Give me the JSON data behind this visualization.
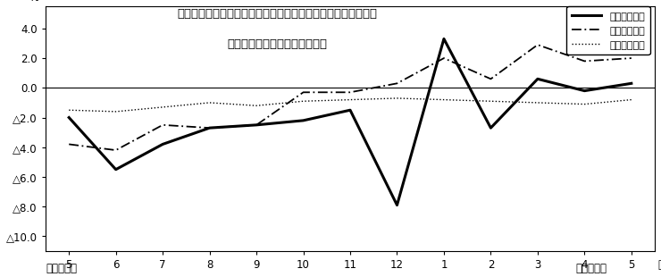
{
  "title_line1": "第４図　賃金、労働時間、常用雇用指数　対前年同月比の推移",
  "title_line2": "（規模５人以上　調査産業計）",
  "xlabel_months": [
    "5",
    "6",
    "7",
    "8",
    "9",
    "10",
    "11",
    "12",
    "1",
    "2",
    "3",
    "4",
    "5"
  ],
  "xlabel_bottom_left": "平成２１年",
  "xlabel_bottom_right": "平成２２年",
  "month_label": "月",
  "ylabel": "%",
  "ylim": [
    -11.0,
    5.5
  ],
  "yticks": [
    4.0,
    2.0,
    0.0,
    -2.0,
    -4.0,
    -6.0,
    -8.0,
    -10.0
  ],
  "ytick_labels": [
    "4.0",
    "2.0",
    "0.0",
    "△2.0",
    "△4.0",
    "△6.0",
    "△8.0",
    "△10.0"
  ],
  "series_cash": [
    -2.0,
    -5.5,
    -3.8,
    -2.7,
    -2.5,
    -2.2,
    -1.5,
    -7.9,
    3.3,
    -2.7,
    0.6,
    -0.2,
    0.3
  ],
  "series_hours": [
    -3.8,
    -4.2,
    -2.5,
    -2.7,
    -2.5,
    -0.3,
    -0.3,
    0.3,
    2.0,
    0.6,
    2.9,
    1.8,
    2.0
  ],
  "series_employment": [
    -1.5,
    -1.6,
    -1.3,
    -1.0,
    -1.2,
    -0.9,
    -0.8,
    -0.7,
    -0.8,
    -0.9,
    -1.0,
    -1.1,
    -0.8
  ],
  "legend_labels": [
    "現金給与総額",
    "総実労働時間",
    "常用雇用指数"
  ],
  "background_color": "#ffffff",
  "line_color": "#000000",
  "title_fontsize": 9.5,
  "axis_fontsize": 8.5,
  "legend_fontsize": 8
}
